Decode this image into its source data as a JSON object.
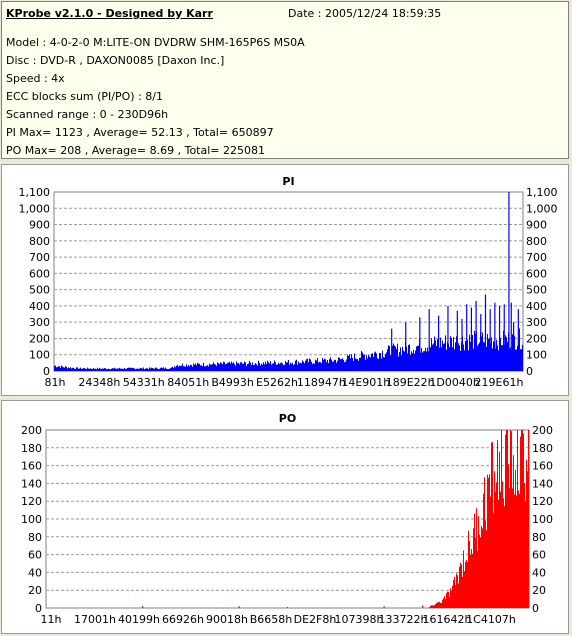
{
  "info": {
    "title": "KProbe v2.1.0 - Designed by Karr",
    "date": "Date : 2005/12/24 18:59:35",
    "lines": [
      "Model : 4-0-2-0 M:LITE-ON DVDRW SHM-165P6S MS0A",
      "Disc : DVD-R , DAXON0085 [Daxon Inc.]",
      "Speed : 4x",
      "ECC blocks sum (PI/PO) : 8/1",
      "Scanned range : 0 - 230D96h",
      "PI Max= 1123 , Average= 52.13 , Total= 650897",
      "PO Max= 208 , Average= 8.69 , Total= 225081"
    ]
  },
  "chart_data": [
    {
      "type": "area",
      "title": "PI",
      "color": "#0000ff",
      "ylim": [
        0,
        1100
      ],
      "yticks": [
        "0",
        "100",
        "200",
        "300",
        "400",
        "500",
        "600",
        "700",
        "800",
        "900",
        "1,000",
        "1,100"
      ],
      "xticks": [
        "81h",
        "24348h",
        "54331h",
        "84051h",
        "B4993h",
        "E5262h",
        "118947h",
        "14E901h",
        "189E22h",
        "1D0040h",
        "219E61h"
      ],
      "grid": true,
      "envelope_x": [
        0,
        0.02,
        0.05,
        0.1,
        0.2,
        0.25,
        0.26,
        0.4,
        0.5,
        0.6,
        0.65,
        0.7,
        0.75,
        0.8,
        0.85,
        0.9,
        0.95,
        1.0
      ],
      "envelope_y": [
        40,
        30,
        20,
        18,
        20,
        22,
        45,
        55,
        65,
        80,
        110,
        140,
        170,
        200,
        220,
        230,
        230,
        240
      ],
      "spikes_x": [
        0.72,
        0.75,
        0.78,
        0.8,
        0.82,
        0.84,
        0.86,
        0.87,
        0.88,
        0.89,
        0.9,
        0.91,
        0.92,
        0.93,
        0.94,
        0.95,
        0.96,
        0.97,
        0.975,
        0.98,
        0.99
      ],
      "spikes_y": [
        260,
        300,
        330,
        380,
        340,
        400,
        370,
        320,
        410,
        390,
        430,
        350,
        470,
        380,
        420,
        400,
        410,
        1123,
        420,
        300,
        380
      ]
    },
    {
      "type": "area",
      "title": "PO",
      "color": "#ff0000",
      "ylim": [
        0,
        200
      ],
      "yticks": [
        "0",
        "20",
        "40",
        "60",
        "80",
        "100",
        "120",
        "140",
        "160",
        "180",
        "200"
      ],
      "xticks": [
        "11h",
        "17001h",
        "40199h",
        "66926h",
        "90018h",
        "B6658h",
        "DE2F8h",
        "107398h",
        "133722h",
        "161642h",
        "1C4107h"
      ],
      "grid": true,
      "envelope_x": [
        0,
        0.5,
        0.79,
        0.8,
        0.82,
        0.84,
        0.86,
        0.88,
        0.9,
        0.92,
        0.94,
        0.96,
        0.98,
        1.0
      ],
      "envelope_y": [
        0,
        0,
        0,
        4,
        10,
        25,
        60,
        90,
        130,
        170,
        195,
        205,
        208,
        208
      ],
      "spikes_x": [
        0.2,
        0.4,
        0.5,
        0.7,
        0.78
      ],
      "spikes_y": [
        2,
        2,
        1,
        2,
        3
      ]
    }
  ]
}
